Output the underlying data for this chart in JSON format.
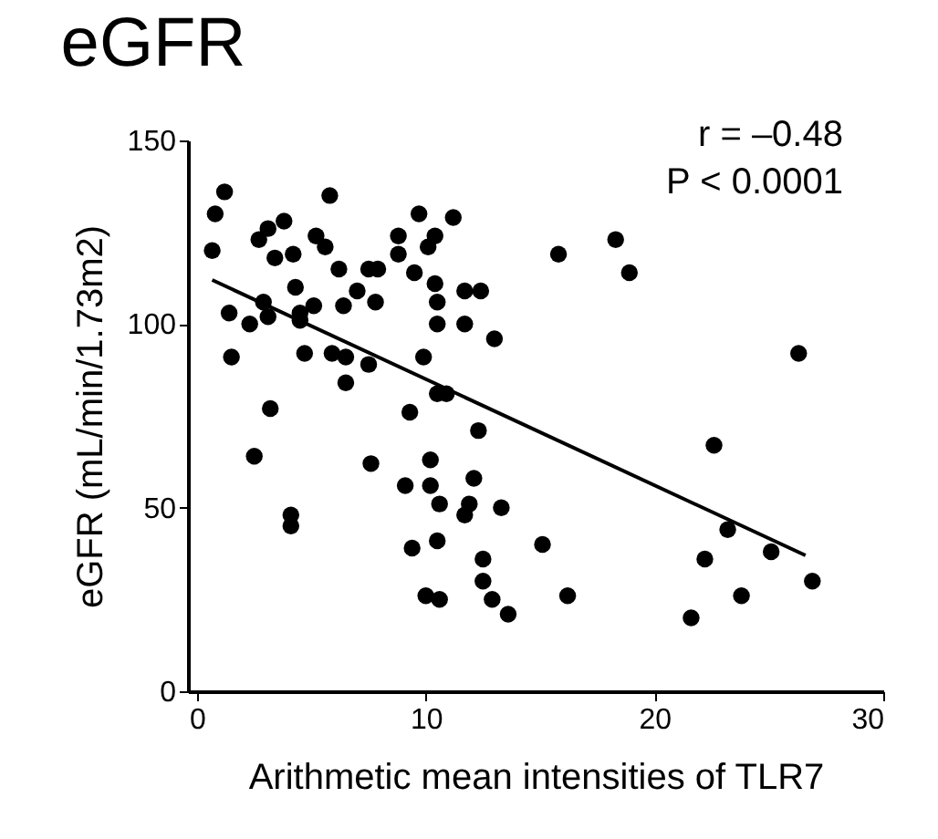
{
  "chart_data": {
    "type": "scatter",
    "title": "eGFR",
    "xlabel": "Arithmetic mean intensities of TLR7",
    "ylabel": "eGFR (mL/min/1.73m2)",
    "xlim": [
      -0.4,
      30
    ],
    "xticks": [
      0,
      10,
      20,
      30
    ],
    "ylim": [
      0,
      150
    ],
    "yticks": [
      0,
      50,
      100,
      150
    ],
    "grid": false,
    "annotations": [
      "r = –0.48",
      "P < 0.0001"
    ],
    "series": [
      {
        "color": "#000000",
        "marker": "circle",
        "x": [
          0.66,
          0.79,
          1.2,
          1.4,
          1.5,
          2.3,
          2.5,
          2.7,
          2.9,
          3.1,
          3.1,
          3.2,
          3.4,
          3.8,
          4.1,
          4.1,
          4.2,
          4.3,
          4.5,
          4.5,
          4.7,
          5.1,
          5.2,
          5.6,
          5.8,
          5.9,
          6.2,
          6.4,
          6.5,
          6.5,
          7.0,
          7.5,
          7.5,
          7.6,
          7.8,
          7.9,
          8.8,
          8.8,
          9.1,
          9.3,
          9.4,
          9.5,
          9.7,
          9.9,
          10.0,
          10.1,
          10.2,
          10.2,
          10.4,
          10.4,
          10.5,
          10.5,
          10.5,
          10.5,
          10.6,
          10.6,
          10.9,
          11.2,
          11.7,
          11.7,
          11.7,
          11.9,
          12.1,
          12.3,
          12.4,
          12.5,
          12.5,
          12.9,
          13.0,
          13.3,
          13.6,
          15.1,
          16.2,
          15.8,
          18.3,
          18.9,
          26.3,
          22.6,
          23.2,
          22.2,
          21.6,
          23.8,
          25.1,
          26.9
        ],
        "values": [
          120,
          130,
          136,
          103,
          91,
          100,
          64,
          123,
          106,
          126,
          102,
          77,
          118,
          128,
          48,
          45,
          119,
          110,
          103,
          101,
          92,
          105,
          124,
          121,
          135,
          92,
          115,
          105,
          91,
          84,
          109,
          115,
          89,
          62,
          106,
          115,
          124,
          119,
          56,
          76,
          39,
          114,
          130,
          91,
          26,
          121,
          63,
          56,
          124,
          111,
          41,
          106,
          100,
          81,
          51,
          25,
          81,
          129,
          109,
          100,
          48,
          51,
          58,
          71,
          109,
          36,
          30,
          25,
          96,
          50,
          21,
          40,
          26,
          119,
          123,
          114,
          92,
          67,
          44,
          36,
          20,
          26,
          38,
          30
        ]
      },
      {
        "type": "line",
        "marker": "none",
        "color": "#000000",
        "x": [
          0.66,
          26.6
        ],
        "values": [
          112,
          37
        ]
      }
    ]
  }
}
